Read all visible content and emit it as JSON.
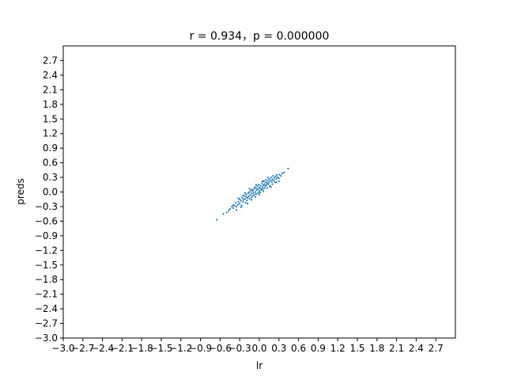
{
  "chart_data": {
    "type": "scatter",
    "title": "r =  0.934，p = 0.000000",
    "xlabel": "lr",
    "ylabel": "preds",
    "xlim": [
      -3.0,
      3.0
    ],
    "ylim": [
      -3.0,
      3.0
    ],
    "xticks": [
      "−3.0",
      "−2.7",
      "−2.4",
      "−2.1",
      "−1.8",
      "−1.5",
      "−1.2",
      "−0.9",
      "−0.6",
      "−0.3",
      "0.0",
      "0.3",
      "0.6",
      "0.9",
      "1.2",
      "1.5",
      "1.8",
      "2.1",
      "2.4",
      "2.7"
    ],
    "yticks": [
      "−3.0",
      "−2.7",
      "−2.4",
      "−2.1",
      "−1.8",
      "−1.5",
      "−1.2",
      "−0.9",
      "−0.6",
      "−0.3",
      "0.0",
      "0.3",
      "0.6",
      "0.9",
      "1.2",
      "1.5",
      "1.8",
      "2.1",
      "2.4",
      "2.7"
    ],
    "grid": false,
    "marker_color": "#1f77b4",
    "series": [
      {
        "values": [
          [
            -0.65,
            -0.57
          ],
          [
            -0.55,
            -0.45
          ],
          [
            -0.5,
            -0.42
          ],
          [
            -0.47,
            -0.38
          ],
          [
            -0.45,
            -0.35
          ],
          [
            -0.42,
            -0.3
          ],
          [
            -0.4,
            -0.33
          ],
          [
            -0.38,
            -0.28
          ],
          [
            -0.36,
            -0.22
          ],
          [
            -0.35,
            -0.3
          ],
          [
            -0.33,
            -0.26
          ],
          [
            -0.32,
            -0.2
          ],
          [
            -0.3,
            -0.24
          ],
          [
            -0.3,
            -0.15
          ],
          [
            -0.28,
            -0.18
          ],
          [
            -0.27,
            -0.28
          ],
          [
            -0.26,
            -0.12
          ],
          [
            -0.25,
            -0.2
          ],
          [
            -0.24,
            -0.16
          ],
          [
            -0.23,
            -0.08
          ],
          [
            -0.22,
            -0.14
          ],
          [
            -0.21,
            -0.22
          ],
          [
            -0.2,
            -0.1
          ],
          [
            -0.2,
            -0.05
          ],
          [
            -0.19,
            -0.17
          ],
          [
            -0.18,
            -0.12
          ],
          [
            -0.17,
            -0.02
          ],
          [
            -0.16,
            -0.09
          ],
          [
            -0.15,
            -0.14
          ],
          [
            -0.15,
            0.0
          ],
          [
            -0.14,
            -0.06
          ],
          [
            -0.13,
            0.03
          ],
          [
            -0.12,
            -0.11
          ],
          [
            -0.12,
            -0.03
          ],
          [
            -0.11,
            0.05
          ],
          [
            -0.1,
            -0.08
          ],
          [
            -0.1,
            0.02
          ],
          [
            -0.09,
            -0.02
          ],
          [
            -0.08,
            0.06
          ],
          [
            -0.08,
            -0.06
          ],
          [
            -0.07,
            0.1
          ],
          [
            -0.06,
            0.0
          ],
          [
            -0.05,
            -0.04
          ],
          [
            -0.05,
            0.08
          ],
          [
            -0.04,
            0.04
          ],
          [
            -0.03,
            0.12
          ],
          [
            -0.02,
            -0.02
          ],
          [
            -0.02,
            0.06
          ],
          [
            -0.01,
            0.15
          ],
          [
            0.0,
            0.02
          ],
          [
            0.0,
            0.09
          ],
          [
            0.01,
            -0.01
          ],
          [
            0.02,
            0.07
          ],
          [
            0.02,
            0.13
          ],
          [
            0.03,
            0.04
          ],
          [
            0.04,
            0.18
          ],
          [
            0.05,
            0.1
          ],
          [
            0.05,
            0.06
          ],
          [
            0.06,
            0.14
          ],
          [
            0.07,
            0.22
          ],
          [
            0.08,
            0.08
          ],
          [
            0.08,
            0.16
          ],
          [
            0.09,
            0.12
          ],
          [
            0.1,
            0.2
          ],
          [
            0.1,
            0.25
          ],
          [
            0.11,
            0.14
          ],
          [
            0.12,
            0.18
          ],
          [
            0.13,
            0.23
          ],
          [
            0.14,
            0.16
          ],
          [
            0.15,
            0.27
          ],
          [
            0.15,
            0.2
          ],
          [
            0.16,
            0.12
          ],
          [
            0.17,
            0.24
          ],
          [
            0.18,
            0.3
          ],
          [
            0.19,
            0.21
          ],
          [
            0.2,
            0.26
          ],
          [
            0.21,
            0.33
          ],
          [
            0.22,
            0.24
          ],
          [
            0.23,
            0.29
          ],
          [
            0.24,
            0.2
          ],
          [
            0.25,
            0.32
          ],
          [
            0.26,
            0.27
          ],
          [
            0.27,
            0.35
          ],
          [
            0.28,
            0.3
          ],
          [
            0.3,
            0.28
          ],
          [
            0.31,
            0.36
          ],
          [
            0.33,
            0.33
          ],
          [
            0.35,
            0.38
          ],
          [
            0.38,
            0.4
          ],
          [
            0.44,
            0.48
          ],
          [
            -0.35,
            -0.37
          ],
          [
            -0.28,
            -0.31
          ],
          [
            -0.18,
            -0.24
          ],
          [
            -0.12,
            -0.16
          ],
          [
            -0.06,
            -0.1
          ],
          [
            0.0,
            -0.05
          ],
          [
            0.06,
            0.02
          ],
          [
            0.12,
            0.08
          ],
          [
            0.2,
            0.16
          ],
          [
            0.26,
            0.2
          ],
          [
            -0.25,
            -0.07
          ],
          [
            -0.15,
            0.07
          ],
          [
            -0.05,
            0.15
          ],
          [
            0.05,
            0.22
          ],
          [
            0.13,
            0.3
          ],
          [
            -0.4,
            -0.27
          ],
          [
            -0.32,
            -0.13
          ],
          [
            -0.22,
            -0.02
          ],
          [
            0.18,
            0.1
          ],
          [
            0.3,
            0.22
          ]
        ]
      }
    ]
  }
}
